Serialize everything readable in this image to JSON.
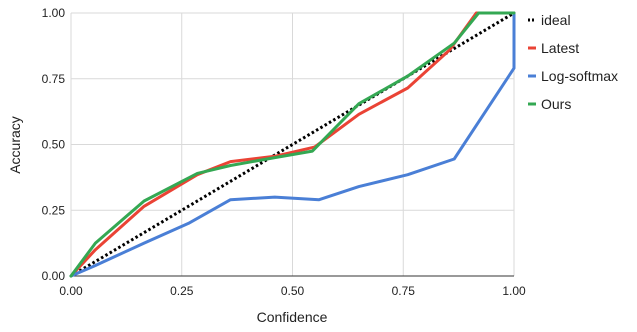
{
  "chart_data": {
    "type": "line",
    "xlabel": "Confidence",
    "ylabel": "Accuracy",
    "xlim": [
      0,
      1
    ],
    "ylim": [
      0,
      1
    ],
    "xticks": [
      "0.00",
      "0.25",
      "0.50",
      "0.75",
      "1.00"
    ],
    "yticks": [
      "0.00",
      "0.25",
      "0.50",
      "0.75",
      "1.00"
    ],
    "grid": true,
    "legend_position": "right",
    "series": [
      {
        "name": "ideal",
        "color": "#000000",
        "style": "dotted",
        "x": [
          0,
          1
        ],
        "y": [
          0,
          1
        ]
      },
      {
        "name": "Latest",
        "color": "#ea4335",
        "style": "solid",
        "x": [
          0,
          0.055,
          0.165,
          0.285,
          0.36,
          0.46,
          0.55,
          0.65,
          0.76,
          0.855,
          0.915,
          1.0
        ],
        "y": [
          0,
          0.1,
          0.265,
          0.385,
          0.435,
          0.455,
          0.49,
          0.615,
          0.715,
          0.86,
          1.0,
          1.0
        ]
      },
      {
        "name": "Log-softmax",
        "color": "#4a7fd6",
        "style": "solid",
        "x": [
          0,
          0.055,
          0.165,
          0.265,
          0.36,
          0.46,
          0.56,
          0.65,
          0.76,
          0.865,
          1.0,
          1.0
        ],
        "y": [
          0,
          0.04,
          0.125,
          0.2,
          0.29,
          0.3,
          0.29,
          0.34,
          0.385,
          0.445,
          0.79,
          1.0
        ]
      },
      {
        "name": "Ours",
        "color": "#34a853",
        "style": "solid",
        "x": [
          0,
          0.055,
          0.165,
          0.285,
          0.36,
          0.46,
          0.545,
          0.65,
          0.76,
          0.865,
          0.92,
          1.0
        ],
        "y": [
          0,
          0.125,
          0.285,
          0.39,
          0.42,
          0.45,
          0.475,
          0.655,
          0.76,
          0.885,
          1.0,
          1.0
        ]
      }
    ]
  }
}
